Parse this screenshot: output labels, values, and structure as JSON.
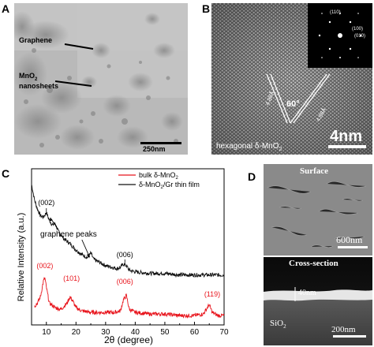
{
  "figure": {
    "panel_a": {
      "letter": "A",
      "label_graphene": "Graphene",
      "label_mno2_line1": "MnO",
      "label_mno2_sub": "2",
      "label_mno2_line2": "nanosheets",
      "scalebar": "250nm"
    },
    "panel_b": {
      "letter": "B",
      "angle": "60°",
      "d_left": "4.88Å",
      "d_right": "4.88Å",
      "caption_prefix": "hexagonal δ-MnO",
      "caption_sub": "2",
      "scalebar": "4nm",
      "saed_labels": [
        "(110)",
        "(100)",
        "(010)"
      ]
    },
    "panel_c": {
      "letter": "C",
      "legend": [
        {
          "name_prefix": "bulk δ-MnO",
          "name_sub": "2",
          "color": "#e8141c"
        },
        {
          "name_prefix": "δ-MnO",
          "name_sub": "2",
          "name_suffix": "/Gr thin film",
          "color": "#111111"
        }
      ],
      "annotation": "graphene peaks",
      "peak_labels_black": [
        "(002)",
        "(006)"
      ],
      "peak_labels_red": [
        "(002)",
        "(101)",
        "(006)",
        "(119)"
      ]
    },
    "panel_d": {
      "letter": "D",
      "top_title": "Surface",
      "top_scalebar": "600nm",
      "bottom_title": "Cross-section",
      "thickness": "40nm",
      "substrate_prefix": "SiO",
      "substrate_sub": "2",
      "bottom_scalebar": "200nm"
    }
  },
  "chart_data": {
    "type": "line",
    "title": "",
    "xlabel": "2θ (degree)",
    "ylabel": "Relative Intensity (a.u.)",
    "xlim": [
      5,
      70
    ],
    "xticks": [
      10,
      20,
      30,
      40,
      50,
      60,
      70
    ],
    "yticks": [],
    "legend_position": "top-right",
    "series": [
      {
        "name": "δ-MnO2/Gr thin film",
        "color": "#111111",
        "x": [
          5,
          6,
          7,
          8,
          9,
          10,
          11,
          12,
          13,
          14,
          16,
          18,
          20,
          22,
          24,
          25,
          26,
          28,
          30,
          32,
          34,
          35,
          36,
          37,
          38,
          40,
          45,
          50,
          55,
          60,
          65,
          70
        ],
        "y": [
          0.9,
          0.8,
          0.74,
          0.7,
          0.69,
          0.72,
          0.67,
          0.64,
          0.65,
          0.6,
          0.55,
          0.52,
          0.48,
          0.45,
          0.43,
          0.46,
          0.42,
          0.4,
          0.38,
          0.37,
          0.36,
          0.37,
          0.39,
          0.38,
          0.35,
          0.34,
          0.33,
          0.33,
          0.32,
          0.32,
          0.32,
          0.32
        ]
      },
      {
        "name": "bulk δ-MnO2",
        "color": "#e8141c",
        "x": [
          6,
          7,
          8,
          9,
          9.5,
          10,
          11,
          13,
          15,
          17,
          18,
          19,
          20,
          22,
          25,
          28,
          30,
          33,
          35,
          36,
          37,
          38,
          40,
          45,
          50,
          55,
          60,
          63,
          65,
          66,
          68,
          70
        ],
        "y": [
          0.12,
          0.14,
          0.18,
          0.28,
          0.3,
          0.24,
          0.14,
          0.11,
          0.1,
          0.14,
          0.18,
          0.15,
          0.11,
          0.09,
          0.08,
          0.08,
          0.08,
          0.08,
          0.09,
          0.16,
          0.19,
          0.1,
          0.08,
          0.07,
          0.07,
          0.06,
          0.06,
          0.07,
          0.13,
          0.08,
          0.06,
          0.06
        ]
      }
    ]
  }
}
